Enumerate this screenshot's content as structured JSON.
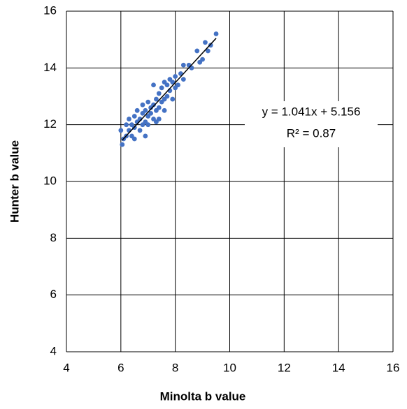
{
  "chart_data": {
    "type": "scatter",
    "x_label": "Minolta b value",
    "y_label": "Hunter b value",
    "xlim": [
      4,
      16
    ],
    "ylim": [
      4,
      16
    ],
    "xticks": [
      4,
      6,
      8,
      10,
      12,
      14,
      16
    ],
    "yticks": [
      4,
      6,
      8,
      10,
      12,
      14,
      16
    ],
    "grid": true,
    "color": "#4472c4",
    "x": [
      6.0,
      6.05,
      6.1,
      6.2,
      6.2,
      6.3,
      6.3,
      6.4,
      6.4,
      6.5,
      6.5,
      6.5,
      6.6,
      6.6,
      6.7,
      6.7,
      6.8,
      6.8,
      6.8,
      6.9,
      6.9,
      7.0,
      7.0,
      7.0,
      7.1,
      7.1,
      7.2,
      7.2,
      7.2,
      7.3,
      7.3,
      7.4,
      7.4,
      7.4,
      7.5,
      7.5,
      7.6,
      7.6,
      7.7,
      7.7,
      7.8,
      7.8,
      7.9,
      7.9,
      8.0,
      8.0,
      8.1,
      8.2,
      8.3,
      8.3,
      8.6,
      8.9,
      8.8,
      9.0,
      9.1,
      9.2,
      9.3,
      9.5,
      8.5,
      7.3,
      6.9,
      7.6
    ],
    "y": [
      11.8,
      11.3,
      11.5,
      11.6,
      12.0,
      11.8,
      12.2,
      11.6,
      12.0,
      11.9,
      12.3,
      11.5,
      12.1,
      12.5,
      11.8,
      12.2,
      12.0,
      12.4,
      12.7,
      12.1,
      12.5,
      12.3,
      12.0,
      12.8,
      12.4,
      12.6,
      12.2,
      12.7,
      13.4,
      12.5,
      12.9,
      12.6,
      13.1,
      12.2,
      12.8,
      13.3,
      12.9,
      13.5,
      13.0,
      13.4,
      13.2,
      13.6,
      12.9,
      13.5,
      13.3,
      13.7,
      13.4,
      13.8,
      13.6,
      14.1,
      14.0,
      14.2,
      14.6,
      14.3,
      14.9,
      14.6,
      14.8,
      15.2,
      14.1,
      12.1,
      11.6,
      12.5
    ],
    "trendline": {
      "label": "y = 1.041x + 5.156",
      "r2_label": "R² = 0.87",
      "slope": 1.041,
      "intercept": 5.156,
      "r2": 0.87,
      "x_start": 6.05,
      "x_end": 9.5
    }
  }
}
